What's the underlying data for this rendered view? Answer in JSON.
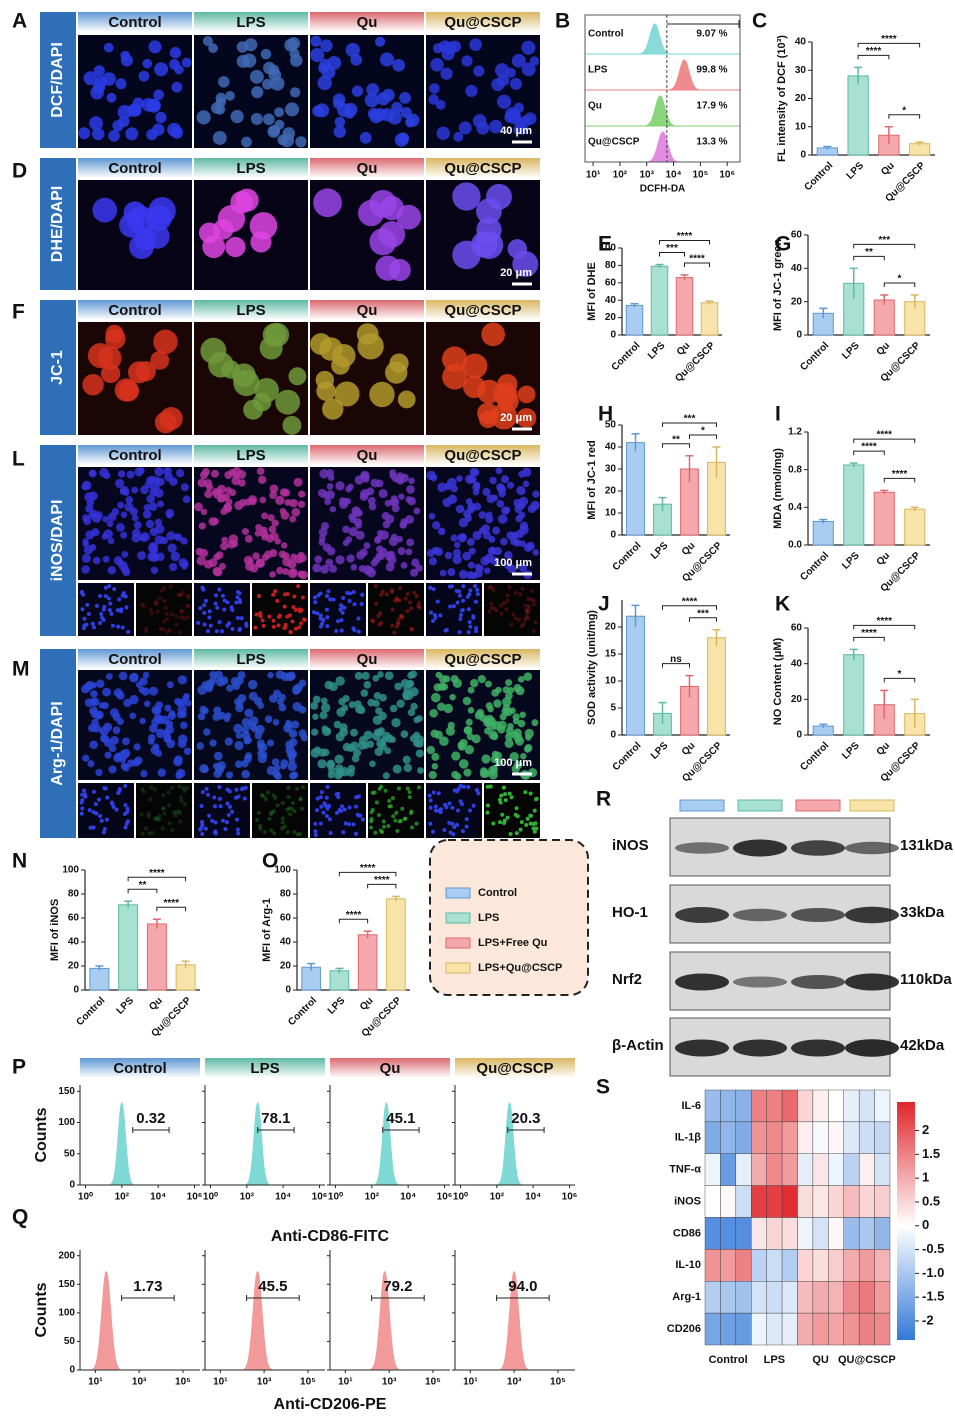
{
  "panel_labels": [
    "A",
    "B",
    "C",
    "D",
    "E",
    "F",
    "G",
    "H",
    "I",
    "J",
    "K",
    "L",
    "M",
    "N",
    "O",
    "P",
    "Q",
    "R",
    "S"
  ],
  "group_colors": [
    "#a9cdf0",
    "#a8e0d2",
    "#f4a8ab",
    "#f8e4a8"
  ],
  "group_edge_colors": [
    "#5f97d3",
    "#5db9a2",
    "#db6a70",
    "#d9b660"
  ],
  "micrographs": [
    {
      "stain": "DCF/DAPI",
      "groups": [
        "Control",
        "LPS",
        "Qu",
        "Qu@CSCP"
      ],
      "scale_bar": "40 μm"
    },
    {
      "stain": "DHE/DAPI",
      "groups": [
        "Control",
        "LPS",
        "Qu",
        "Qu@CSCP"
      ],
      "scale_bar": "20 μm"
    },
    {
      "stain": "JC-1",
      "groups": [
        "Control",
        "LPS",
        "Qu",
        "Qu@CSCP"
      ],
      "scale_bar": "20 μm"
    },
    {
      "stain": "iNOS/DAPI",
      "groups": [
        "Control",
        "LPS",
        "Qu",
        "Qu@CSCP"
      ],
      "scale_bar": "100 μm"
    },
    {
      "stain": "Arg-1/DAPI",
      "groups": [
        "Control",
        "LPS",
        "Qu",
        "Qu@CSCP"
      ],
      "scale_bar": "100 μm"
    }
  ],
  "legend": {
    "items": [
      "Control",
      "LPS",
      "LPS+Free Qu",
      "LPS+Qu@CSCP"
    ]
  },
  "western_blot": {
    "rows": [
      {
        "protein": "iNOS",
        "size": "131kDa"
      },
      {
        "protein": "HO-1",
        "size": "33kDa"
      },
      {
        "protein": "Nrf2",
        "size": "110kDa"
      },
      {
        "protein": "β-Actin",
        "size": "42kDa"
      }
    ]
  },
  "chart_data": [
    {
      "type": "flow-stack",
      "categories": [
        "Control",
        "LPS",
        "Qu",
        "Qu@CSCP"
      ],
      "values": [
        9.07,
        99.8,
        17.9,
        13.3
      ],
      "value_labels": [
        "9.07 %",
        "99.8 %",
        "17.9 %",
        "13.3 %"
      ],
      "colors": [
        "#7fd6d6",
        "#ef7f80",
        "#7ed26e",
        "#e07fe0"
      ],
      "xlabel": "DCFH-DA",
      "log_x": true,
      "xlim": [
        5,
        3000000
      ],
      "xticks": [
        {
          "value": 10,
          "label": "10¹"
        },
        {
          "value": 100,
          "label": "10²"
        },
        {
          "value": 1000,
          "label": "10³"
        },
        {
          "value": 10000,
          "label": "10⁴"
        },
        {
          "value": 100000,
          "label": "10⁵"
        },
        {
          "value": 1000000,
          "label": "10⁶"
        }
      ]
    },
    {
      "type": "bar",
      "ylabel": "FL intensity of DCF (10³)",
      "categories": [
        "Control",
        "LPS",
        "Qu",
        "Qu@CSCP"
      ],
      "values": [
        2.5,
        28,
        7,
        4
      ],
      "errors": [
        0.5,
        3,
        3,
        0.6
      ],
      "ylim": [
        0,
        40
      ],
      "yticks": [
        0,
        10,
        20,
        30,
        40
      ],
      "annotations": [
        "****",
        "****",
        "*"
      ]
    },
    {
      "type": "bar",
      "ylabel": "MFI of DHE",
      "categories": [
        "Control",
        "LPS",
        "Qu",
        "Qu@CSCP"
      ],
      "values": [
        34,
        79,
        66,
        37
      ],
      "errors": [
        2,
        2,
        3,
        2
      ],
      "ylim": [
        0,
        100
      ],
      "yticks": [
        0,
        20,
        40,
        60,
        80,
        100
      ],
      "annotations": [
        "****",
        "***",
        "****"
      ]
    },
    {
      "type": "bar",
      "ylabel": "MFI of JC-1 green",
      "categories": [
        "Control",
        "LPS",
        "Qu",
        "Qu@CSCP"
      ],
      "values": [
        13,
        31,
        21,
        20
      ],
      "errors": [
        3,
        9,
        3,
        4
      ],
      "ylim": [
        0,
        60
      ],
      "yticks": [
        0,
        20,
        40,
        60
      ],
      "annotations": [
        "***",
        "**",
        "*"
      ]
    },
    {
      "type": "bar",
      "ylabel": "MFI of JC-1 red",
      "categories": [
        "Control",
        "LPS",
        "Qu",
        "Qu@CSCP"
      ],
      "values": [
        42,
        14,
        30,
        33
      ],
      "errors": [
        4,
        3,
        6,
        7
      ],
      "ylim": [
        0,
        50
      ],
      "yticks": [
        0,
        10,
        20,
        30,
        40,
        50
      ],
      "annotations": [
        "***",
        "*",
        "**"
      ]
    },
    {
      "type": "bar",
      "ylabel": "MDA (nmol/mg)",
      "categories": [
        "Control",
        "LPS",
        "Qu",
        "Qu@CSCP"
      ],
      "values": [
        0.25,
        0.85,
        0.56,
        0.38
      ],
      "errors": [
        0.02,
        0.02,
        0.02,
        0.02
      ],
      "ylim": [
        0,
        1.2
      ],
      "yticks": [
        {
          "value": 0,
          "label": "0.0"
        },
        0.4,
        0.8,
        1.2
      ],
      "annotations": [
        "****",
        "****",
        "****"
      ]
    },
    {
      "type": "bar",
      "ylabel": "SOD activity (unit/mg)",
      "categories": [
        "Control",
        "LPS",
        "Qu",
        "Qu@CSCP"
      ],
      "values": [
        22,
        4,
        9,
        18
      ],
      "errors": [
        2,
        2,
        2,
        1.5
      ],
      "ylim": [
        0,
        25
      ],
      "yticks": [
        0,
        5,
        10,
        15,
        20
      ],
      "annotations": [
        "****",
        "***",
        "ns"
      ]
    },
    {
      "type": "bar",
      "ylabel": "NO Content (μM)",
      "categories": [
        "Control",
        "LPS",
        "Qu",
        "Qu@CSCP"
      ],
      "values": [
        5,
        45,
        17,
        12
      ],
      "errors": [
        1,
        3,
        8,
        8
      ],
      "ylim": [
        0,
        60
      ],
      "yticks": [
        0,
        20,
        40,
        60
      ],
      "annotations": [
        "****",
        "****",
        "*"
      ]
    },
    {
      "type": "bar",
      "ylabel": "MFI of iNOS",
      "categories": [
        "Control",
        "LPS",
        "Qu",
        "Qu@CSCP"
      ],
      "values": [
        18,
        71,
        55,
        21
      ],
      "errors": [
        2,
        3,
        4,
        3
      ],
      "ylim": [
        0,
        100
      ],
      "yticks": [
        0,
        20,
        40,
        60,
        80,
        100
      ],
      "annotations": [
        "****",
        "**",
        "****"
      ]
    },
    {
      "type": "bar",
      "ylabel": "MFI of Arg-1",
      "categories": [
        "Control",
        "LPS",
        "Qu",
        "Qu@CSCP"
      ],
      "values": [
        19,
        16,
        46,
        76
      ],
      "errors": [
        3,
        2,
        3,
        2
      ],
      "ylim": [
        0,
        100
      ],
      "yticks": [
        0,
        20,
        40,
        60,
        80,
        100
      ],
      "annotations": [
        "****",
        "****",
        "****"
      ]
    },
    {
      "type": "flow",
      "groups": [
        "Control",
        "LPS",
        "Qu",
        "Qu@CSCP"
      ],
      "ylabel": "Counts",
      "xlabel": "Anti-CD86-FITC",
      "color": "#7fd9d4",
      "values": [
        0.32,
        78.1,
        45.1,
        20.3
      ],
      "ylim": [
        0,
        160
      ],
      "yticks": [
        0,
        50,
        100,
        150
      ],
      "log_x": true,
      "xlim": [
        0.5,
        2000000
      ],
      "xticks": [
        {
          "value": 1,
          "label": "10⁰"
        },
        {
          "value": 100,
          "label": "10²"
        },
        {
          "value": 10000,
          "label": "10⁴"
        },
        {
          "value": 1000000,
          "label": "10⁶"
        }
      ]
    },
    {
      "type": "flow",
      "ylabel": "Counts",
      "xlabel": "Anti-CD206-PE",
      "color": "#f29a9a",
      "values": [
        1.73,
        45.5,
        79.2,
        94.0
      ],
      "value_labels": [
        "1.73",
        "45.5",
        "79.2",
        "94.0"
      ],
      "ylim": [
        0,
        210
      ],
      "yticks": [
        0,
        50,
        100,
        150,
        200
      ],
      "log_x": true,
      "xlim": [
        2,
        600000
      ],
      "xticks": [
        {
          "value": 10,
          "label": "10¹"
        },
        {
          "value": 1000,
          "label": "10³"
        },
        {
          "value": 100000,
          "label": "10⁵"
        }
      ]
    },
    {
      "type": "heatmap",
      "rows": [
        "IL-6",
        "IL-1β",
        "TNF-α",
        "iNOS",
        "CD86",
        "IL-10",
        "Arg-1",
        "CD206"
      ],
      "column_groups": [
        "Control",
        "LPS",
        "QU",
        "QU@CSCP"
      ],
      "values": [
        [
          -1.2,
          -1.3,
          -1.4,
          1.5,
          1.5,
          1.8,
          0.5,
          0.2,
          0.0,
          -0.3,
          -0.5,
          -0.2
        ],
        [
          -1.5,
          -1.3,
          -1.5,
          1.3,
          1.4,
          1.2,
          0.2,
          -0.1,
          0.1,
          -0.4,
          -0.6,
          -0.7
        ],
        [
          -0.2,
          -1.8,
          -0.3,
          1.0,
          1.4,
          1.2,
          -0.3,
          0.3,
          -0.2,
          -0.8,
          0.2,
          -0.5
        ],
        [
          0.0,
          0.1,
          -0.6,
          2.3,
          2.3,
          2.5,
          0.4,
          0.3,
          0.5,
          0.8,
          0.5,
          0.6
        ],
        [
          -2.0,
          -2.0,
          -2.0,
          0.3,
          0.5,
          0.4,
          -0.2,
          -0.5,
          0.1,
          -1.2,
          -1.0,
          -1.3
        ],
        [
          1.3,
          1.2,
          1.5,
          -0.8,
          -0.6,
          -0.9,
          0.5,
          0.4,
          0.6,
          1.0,
          1.2,
          0.9
        ],
        [
          -0.9,
          -1.0,
          -1.1,
          -0.5,
          -0.6,
          -0.4,
          0.8,
          1.0,
          0.9,
          1.4,
          1.6,
          1.2
        ],
        [
          -1.6,
          -1.7,
          -1.8,
          -0.2,
          -0.4,
          -0.3,
          1.0,
          1.2,
          1.1,
          1.3,
          1.5,
          1.4
        ]
      ],
      "zlim": [
        -2.4,
        2.6
      ],
      "colors": [
        "#3479d8",
        "#ffffff",
        "#e0262b"
      ],
      "zticks": [
        2,
        1.5,
        1,
        0.5,
        0,
        -0.5,
        {
          "value": -1,
          "label": "-1.0"
        },
        -1.5,
        -2
      ]
    }
  ]
}
